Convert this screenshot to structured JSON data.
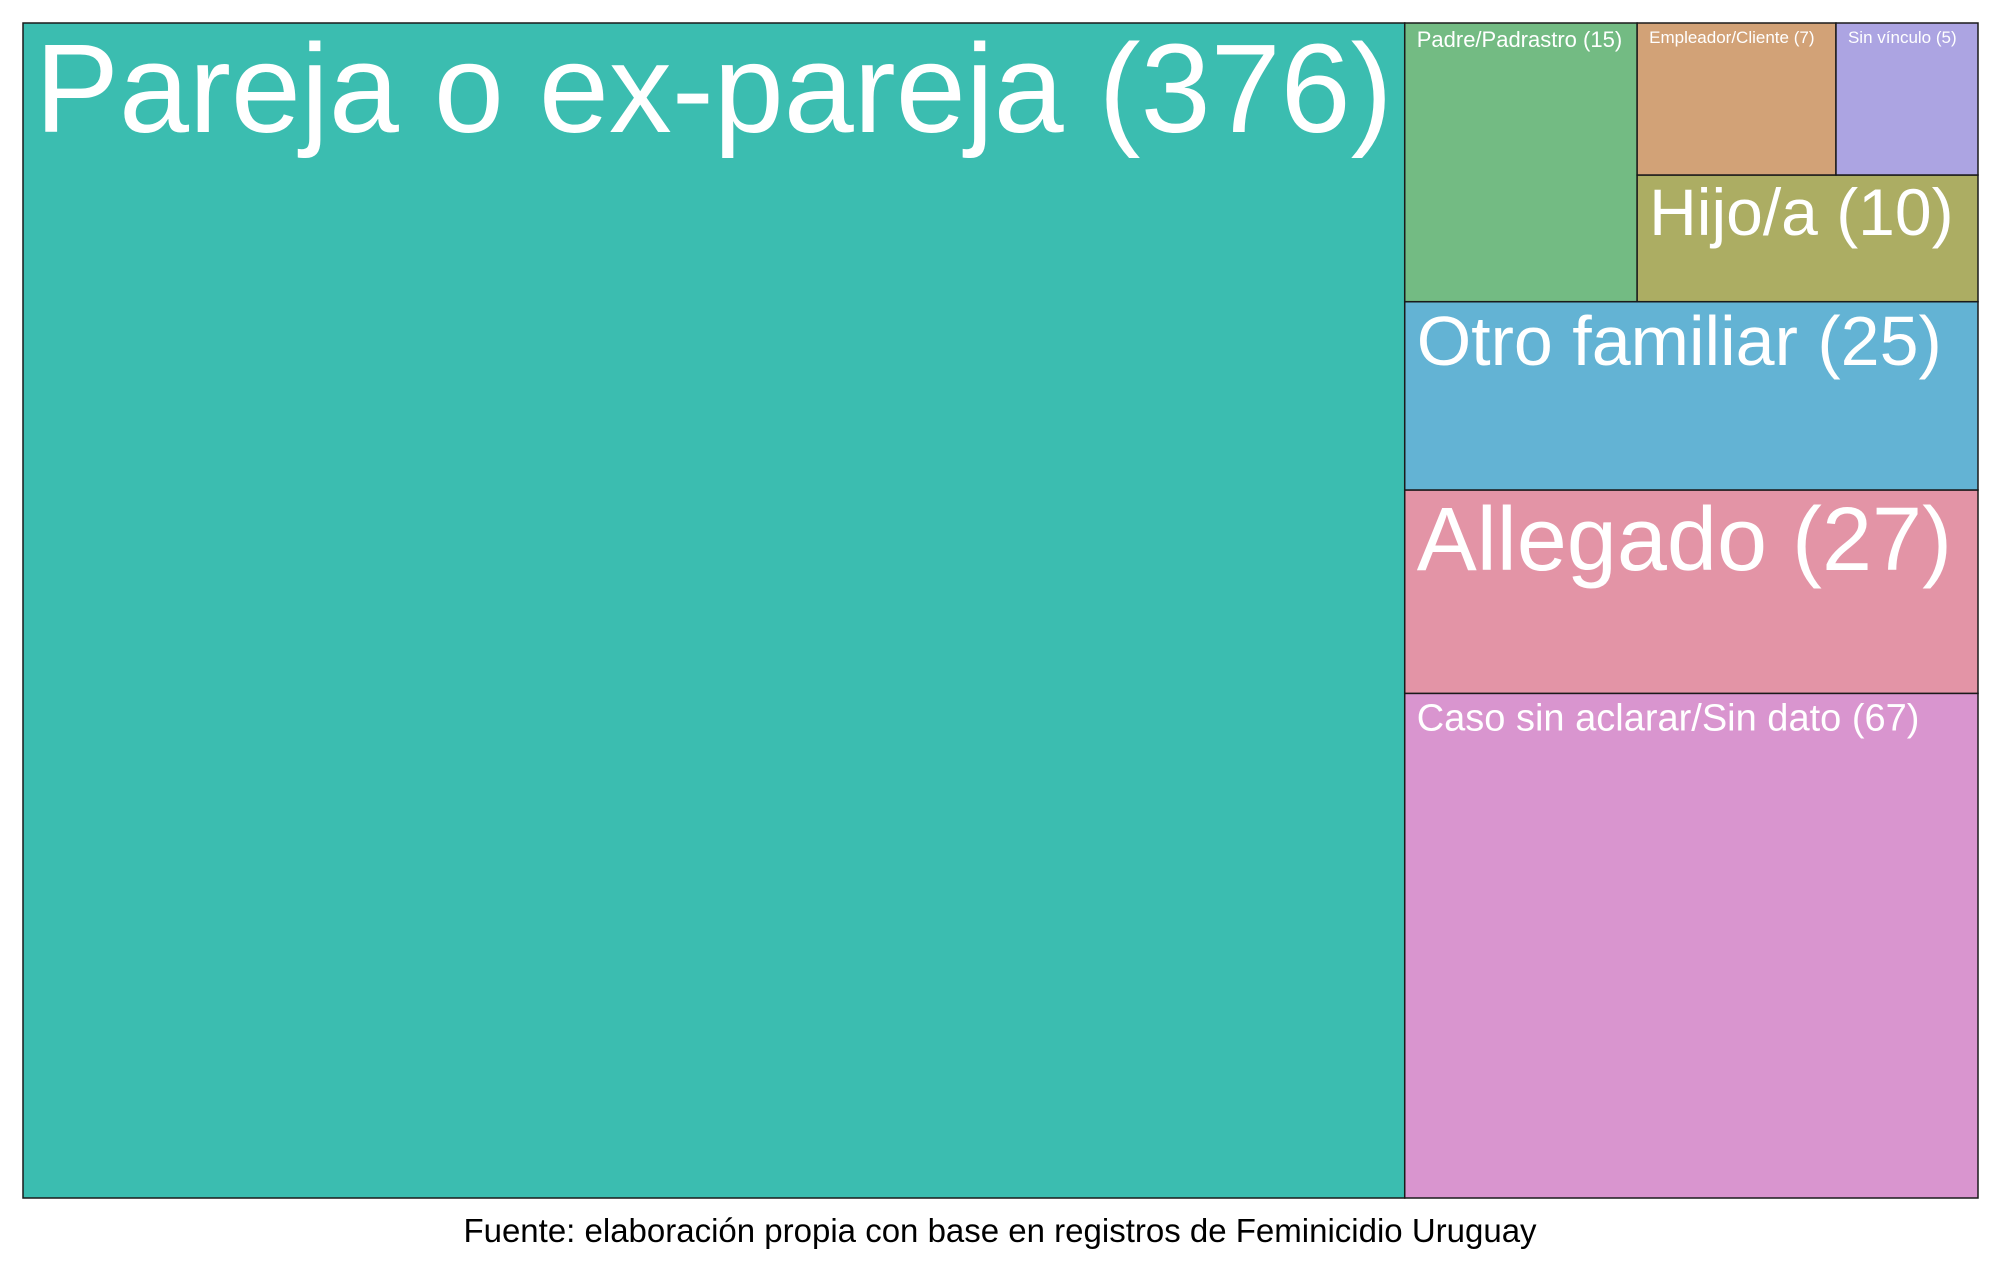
{
  "chart_data": {
    "type": "treemap",
    "items": [
      {
        "name": "Pareja o ex-pareja",
        "value": 376,
        "label": "Pareja o ex-pareja (376)",
        "color": "#3bbdb0"
      },
      {
        "name": "Caso sin aclarar/Sin dato",
        "value": 67,
        "label": "Caso sin aclarar/Sin dato (67)",
        "color": "#d995cf"
      },
      {
        "name": "Allegado",
        "value": 27,
        "label": "Allegado (27)",
        "color": "#e394a6"
      },
      {
        "name": "Otro familiar",
        "value": 25,
        "label": "Otro familiar (25)",
        "color": "#63b3d4"
      },
      {
        "name": "Padre/Padrastro",
        "value": 15,
        "label": "Padre/Padrastro (15)",
        "color": "#73bb83"
      },
      {
        "name": "Hijo/a",
        "value": 10,
        "label": "Hijo/a (10)",
        "color": "#acad63"
      },
      {
        "name": "Empleador/Cliente",
        "value": 7,
        "label": "Empleador/Cliente (7)",
        "color": "#d2a277"
      },
      {
        "name": "Sin vínculo",
        "value": 5,
        "label": "Sin vínculo (5)",
        "color": "#aca4e2"
      }
    ],
    "caption": "Fuente: elaboración propia con base en registros de Feminicidio Uruguay"
  }
}
